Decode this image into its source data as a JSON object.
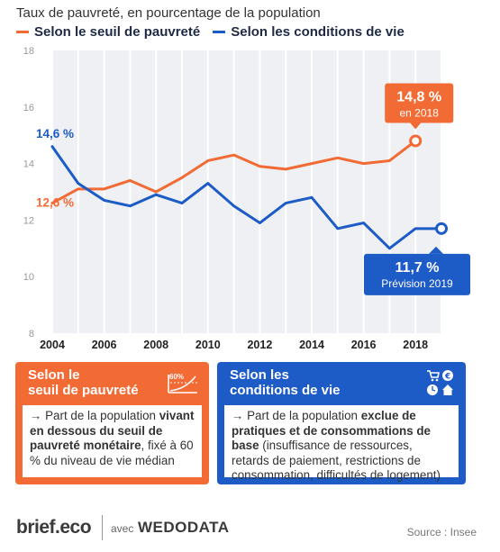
{
  "header": {
    "title": "Taux de pauvreté, en pourcentage de la population"
  },
  "legend": [
    {
      "label": "Selon le seuil de pauvreté",
      "color": "#f26b35"
    },
    {
      "label": "Selon les conditions de vie",
      "color": "#1d5bc6"
    }
  ],
  "chart_data": {
    "type": "line",
    "x": [
      2004,
      2005,
      2006,
      2007,
      2008,
      2009,
      2010,
      2011,
      2012,
      2013,
      2014,
      2015,
      2016,
      2017,
      2018,
      2019
    ],
    "series": [
      {
        "name": "Selon le seuil de pauvreté",
        "color": "#f26b35",
        "values": [
          12.6,
          13.1,
          13.1,
          13.4,
          13.0,
          13.5,
          14.1,
          14.3,
          13.9,
          13.8,
          14.0,
          14.2,
          14.0,
          14.1,
          14.8,
          null
        ]
      },
      {
        "name": "Selon les conditions de vie",
        "color": "#1d5bc6",
        "values": [
          14.6,
          13.3,
          12.7,
          12.5,
          12.9,
          12.6,
          13.3,
          12.5,
          11.9,
          12.6,
          12.8,
          11.7,
          11.9,
          11.0,
          11.7,
          11.7
        ]
      }
    ],
    "ylim": [
      8,
      18
    ],
    "xlim": [
      2004,
      2019
    ],
    "y_ticks": [
      "8",
      "10",
      "12",
      "14",
      "16",
      "18"
    ],
    "x_ticks": [
      "2004",
      "2006",
      "2008",
      "2010",
      "2012",
      "2014",
      "2016",
      "2018"
    ],
    "grid": "vertical",
    "annotations": {
      "orange_start": {
        "text": "12,6 %"
      },
      "blue_start": {
        "text": "14,6 %"
      },
      "orange_end": {
        "value": "14,8 %",
        "sub": "en 2018"
      },
      "blue_end": {
        "value": "11,7 %",
        "sub": "Prévision 2019"
      }
    }
  },
  "cards": {
    "orange": {
      "title_line1": "Selon le",
      "title_line2": "seuil de pauvreté",
      "icon_label": "60%",
      "arrow": "→",
      "intro": "Part de la population",
      "bold": "vivant en dessous du seuil de pauvreté monétaire",
      "rest": ", fixé à 60 % du niveau de vie médian"
    },
    "blue": {
      "title_line1": "Selon les",
      "title_line2": "conditions de vie",
      "arrow": "→",
      "intro": "Part de la population",
      "bold": "exclue de pratiques et de consommations de base",
      "rest": " (insuffisance de ressources, retards de paiement, restrictions de consommation, difficultés de logement)"
    }
  },
  "footer": {
    "brand": "brief.eco",
    "avec": "avec",
    "partner": "WEDODATA",
    "source": "Source : Insee"
  }
}
